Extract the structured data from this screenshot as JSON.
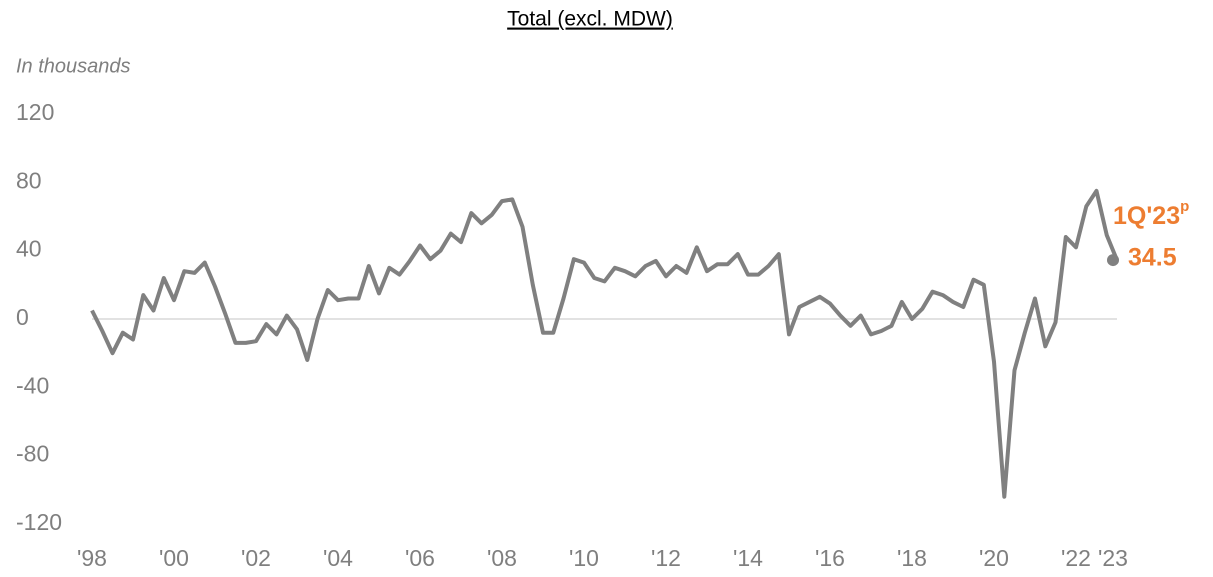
{
  "chart_data": {
    "type": "line",
    "title": "Total (excl. MDW)",
    "y_axis_label": "In thousands",
    "x": [
      1998,
      1998.25,
      1998.5,
      1998.75,
      1999,
      1999.25,
      1999.5,
      1999.75,
      2000,
      2000.25,
      2000.5,
      2000.75,
      2001,
      2001.25,
      2001.5,
      2001.75,
      2002,
      2002.25,
      2002.5,
      2002.75,
      2003,
      2003.25,
      2003.5,
      2003.75,
      2004,
      2004.25,
      2004.5,
      2004.75,
      2005,
      2005.25,
      2005.5,
      2005.75,
      2006,
      2006.25,
      2006.5,
      2006.75,
      2007,
      2007.25,
      2007.5,
      2007.75,
      2008,
      2008.25,
      2008.5,
      2008.75,
      2009,
      2009.25,
      2009.5,
      2009.75,
      2010,
      2010.25,
      2010.5,
      2010.75,
      2011,
      2011.25,
      2011.5,
      2011.75,
      2012,
      2012.25,
      2012.5,
      2012.75,
      2013,
      2013.25,
      2013.5,
      2013.75,
      2014,
      2014.25,
      2014.5,
      2014.75,
      2015,
      2015.25,
      2015.5,
      2015.75,
      2016,
      2016.25,
      2016.5,
      2016.75,
      2017,
      2017.25,
      2017.5,
      2017.75,
      2018,
      2018.25,
      2018.5,
      2018.75,
      2019,
      2019.25,
      2019.5,
      2019.75,
      2020,
      2020.25,
      2020.5,
      2020.75,
      2021,
      2021.25,
      2021.5,
      2021.75,
      2022,
      2022.25,
      2022.5,
      2022.75,
      2023
    ],
    "series": [
      {
        "color": "#808080",
        "values": [
          5,
          -7,
          -20,
          -8,
          -12,
          14,
          5,
          24,
          11,
          28,
          27,
          33,
          19,
          3,
          -14,
          -14,
          -13,
          -3,
          -9,
          2,
          -6,
          -24,
          0,
          17,
          11,
          12,
          12,
          31,
          15,
          30,
          26,
          34,
          43,
          35,
          40,
          50,
          45,
          62,
          56,
          61,
          69,
          70,
          54,
          20,
          -8,
          -8,
          12,
          35,
          33,
          24,
          22,
          30,
          28,
          25,
          31,
          34,
          25,
          31,
          27,
          42,
          28,
          32,
          32,
          38,
          26,
          26,
          31,
          38,
          -9,
          7,
          10,
          13,
          9,
          2,
          -4,
          2,
          -9,
          -7,
          -4,
          10,
          0,
          6,
          16,
          14,
          10,
          7,
          23,
          20,
          -25,
          -104,
          -30,
          -8,
          12,
          -16,
          -2,
          48,
          42,
          66,
          75,
          49,
          34.5
        ]
      }
    ],
    "annotation": {
      "label": "1Q'23",
      "superscript": "p",
      "color": "#ED7D31"
    },
    "xlim": [
      1998,
      2023
    ],
    "xticks": [
      {
        "value": 1998,
        "label": "'98"
      },
      {
        "value": 2000,
        "label": "'00"
      },
      {
        "value": 2002,
        "label": "'02"
      },
      {
        "value": 2004,
        "label": "'04"
      },
      {
        "value": 2006,
        "label": "'06"
      },
      {
        "value": 2008,
        "label": "'08"
      },
      {
        "value": 2010,
        "label": "'10"
      },
      {
        "value": 2012,
        "label": "'12"
      },
      {
        "value": 2014,
        "label": "'14"
      },
      {
        "value": 2016,
        "label": "'16"
      },
      {
        "value": 2018,
        "label": "'18"
      },
      {
        "value": 2020,
        "label": "'20"
      },
      {
        "value": 2022,
        "label": "'22"
      },
      {
        "value": 2023,
        "label": "'23"
      }
    ],
    "ylim": [
      -120,
      120
    ],
    "yticks": [
      -120,
      -80,
      -40,
      0,
      40,
      80,
      120
    ],
    "zero_line": true
  }
}
